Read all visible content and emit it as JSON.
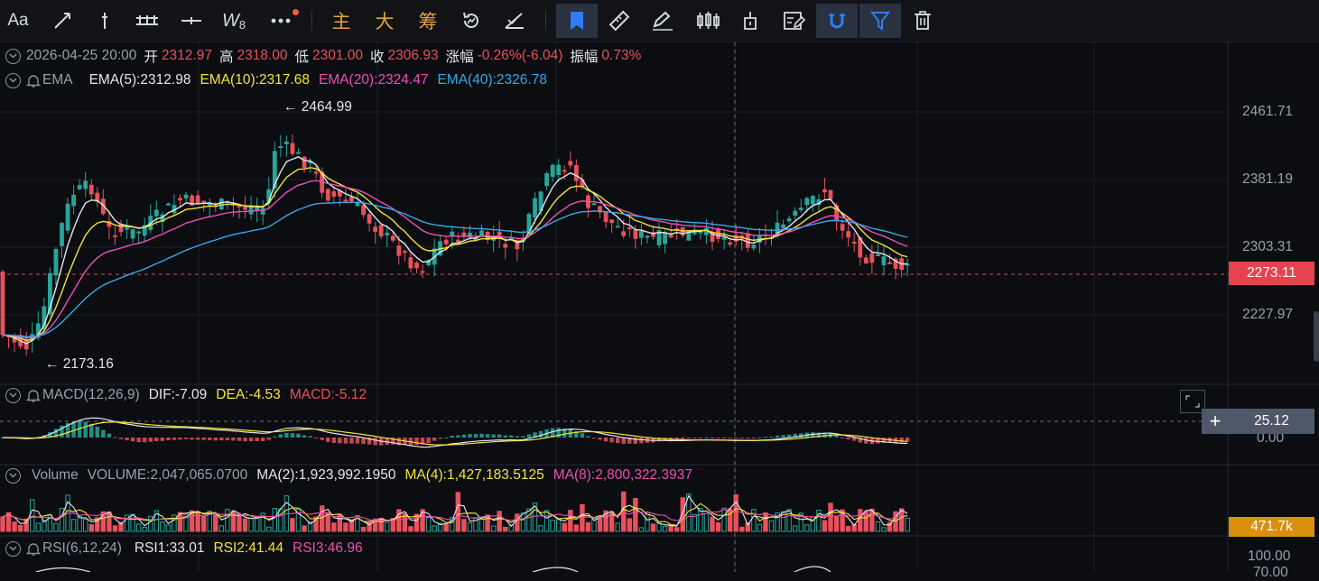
{
  "toolbar": {
    "font_label": "Aa",
    "zhu": "主",
    "da": "大",
    "chou": "筹",
    "wave_label": "W",
    "wave_sub": "8"
  },
  "info": {
    "datetime": "2026-04-25 20:00",
    "open_label": "开",
    "open": "2312.97",
    "high_label": "高",
    "high": "2318.00",
    "low_label": "低",
    "low": "2301.00",
    "close_label": "收",
    "close": "2306.93",
    "change_label": "涨幅",
    "change": "-0.26%(-6.04)",
    "amp_label": "振幅",
    "amp": "0.73%"
  },
  "ema": {
    "name": "EMA",
    "ema5": "EMA(5):2312.98",
    "ema10": "EMA(10):2317.68",
    "ema20": "EMA(20):2324.47",
    "ema40": "EMA(40):2326.78"
  },
  "macd": {
    "name": "MACD(12,26,9)",
    "dif": "DIF:-7.09",
    "dea": "DEA:-4.53",
    "macd": "MACD:-5.12"
  },
  "volume": {
    "name": "Volume",
    "vol": "VOLUME:2,047,065.0700",
    "ma2": "MA(2):1,923,992.1950",
    "ma4": "MA(4):1,427,183.5125",
    "ma8": "MA(8):2,800,322.3937"
  },
  "rsi": {
    "name": "RSI(6,12,24)",
    "rsi1": "RSI1:33.01",
    "rsi2": "RSI2:41.44",
    "rsi3": "RSI3:46.96"
  },
  "axis": {
    "p1": "2461.71",
    "p2": "2381.19",
    "p3": "2303.31",
    "p4": "2227.97",
    "macd_zero": "0.00",
    "rsi_top": "100.00",
    "rsi_cut": "70.00"
  },
  "tags": {
    "last_price": "2273.11",
    "crosshair_value": "25.12",
    "volume_tag": "471.7k"
  },
  "annotations": {
    "high": "← 2464.99",
    "low": "← 2173.16"
  },
  "colors": {
    "up": "#26a69a",
    "down": "#e8515c",
    "ema5": "#e4e6ea",
    "ema10": "#f5e23a",
    "ema20": "#ee4fb5",
    "ema40": "#39a8e8",
    "accent": "#2f7df6"
  },
  "price_range": [
    2140,
    2480
  ]
}
